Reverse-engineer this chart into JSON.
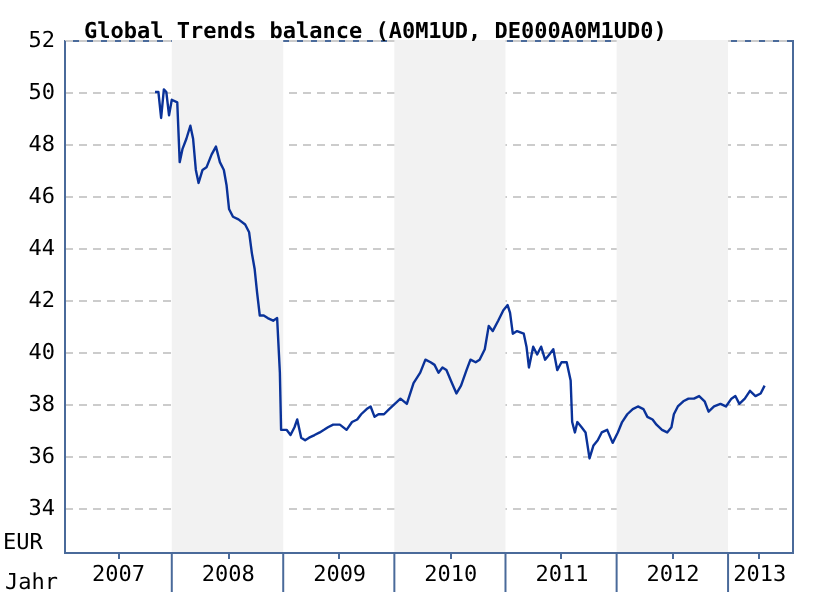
{
  "chart_data": {
    "type": "line",
    "title": "Global Trends balance (A0M1UD, DE000A0M1UD0)",
    "xlabel": "Jahr",
    "ylabel": "EUR",
    "x": [
      "2007-11-07",
      "2007-11-18",
      "2007-11-27",
      "2007-12-06",
      "2007-12-14",
      "2007-12-23",
      "2008-01-01",
      "2008-01-19",
      "2008-01-27",
      "2008-02-05",
      "2008-02-18",
      "2008-03-02",
      "2008-03-11",
      "2008-03-20",
      "2008-03-29",
      "2008-04-11",
      "2008-04-24",
      "2008-05-11",
      "2008-05-25",
      "2008-06-07",
      "2008-06-20",
      "2008-06-29",
      "2008-07-07",
      "2008-07-20",
      "2008-08-07",
      "2008-08-29",
      "2008-09-11",
      "2008-09-20",
      "2008-09-29",
      "2008-10-07",
      "2008-10-16",
      "2008-10-29",
      "2008-11-11",
      "2008-11-29",
      "2008-12-12",
      "2008-12-21",
      "2008-12-25",
      "2009-01-12",
      "2009-01-25",
      "2009-02-07",
      "2009-02-16",
      "2009-03-01",
      "2009-03-14",
      "2009-03-27",
      "2009-04-14",
      "2009-05-01",
      "2009-05-15",
      "2009-05-28",
      "2009-06-14",
      "2009-07-06",
      "2009-07-28",
      "2009-08-15",
      "2009-09-01",
      "2009-09-14",
      "2009-10-02",
      "2009-10-15",
      "2009-10-28",
      "2009-11-10",
      "2009-11-28",
      "2009-12-15",
      "2010-01-21",
      "2010-02-11",
      "2010-03-05",
      "2010-03-27",
      "2010-04-13",
      "2010-04-30",
      "2010-05-13",
      "2010-05-26",
      "2010-06-08",
      "2010-06-21",
      "2010-07-09",
      "2010-07-24",
      "2010-08-08",
      "2010-08-26",
      "2010-09-08",
      "2010-09-25",
      "2010-10-08",
      "2010-10-25",
      "2010-11-07",
      "2010-11-20",
      "2010-12-08",
      "2010-12-25",
      "2011-01-08",
      "2011-01-16",
      "2011-01-25",
      "2011-02-08",
      "2011-03-02",
      "2011-03-11",
      "2011-03-19",
      "2011-04-02",
      "2011-04-15",
      "2011-04-28",
      "2011-05-11",
      "2011-05-25",
      "2011-06-07",
      "2011-06-20",
      "2011-07-04",
      "2011-07-21",
      "2011-08-03",
      "2011-08-08",
      "2011-08-17",
      "2011-08-25",
      "2011-09-08",
      "2011-09-21",
      "2011-10-04",
      "2011-10-17",
      "2011-10-31",
      "2011-11-13",
      "2011-12-01",
      "2011-12-19",
      "2012-01-05",
      "2012-01-19",
      "2012-02-05",
      "2012-02-23",
      "2012-03-11",
      "2012-03-29",
      "2012-04-11",
      "2012-04-28",
      "2012-05-11",
      "2012-05-29",
      "2012-06-15",
      "2012-06-29",
      "2012-07-07",
      "2012-07-20",
      "2012-08-07",
      "2012-08-24",
      "2012-09-11",
      "2012-09-28",
      "2012-10-16",
      "2012-10-29",
      "2012-11-16",
      "2012-12-07",
      "2012-12-25",
      "2013-01-12",
      "2013-01-25",
      "2013-02-07",
      "2013-02-25",
      "2013-03-14",
      "2013-04-01",
      "2013-04-18",
      "2013-05-01"
    ],
    "values": [
      50.0,
      50.0,
      49.0,
      50.1,
      50.0,
      49.1,
      49.7,
      49.6,
      47.3,
      47.8,
      48.2,
      48.7,
      48.2,
      47.0,
      46.5,
      47.0,
      47.1,
      47.6,
      47.9,
      47.3,
      47.0,
      46.4,
      45.5,
      45.2,
      45.1,
      44.9,
      44.6,
      43.8,
      43.2,
      42.3,
      41.4,
      41.4,
      41.3,
      41.2,
      41.3,
      39.2,
      37.0,
      37.0,
      36.8,
      37.1,
      37.4,
      36.7,
      36.6,
      36.7,
      36.8,
      36.9,
      37.0,
      37.1,
      37.2,
      37.2,
      37.0,
      37.3,
      37.4,
      37.6,
      37.8,
      37.9,
      37.5,
      37.6,
      37.6,
      37.8,
      38.2,
      38.0,
      38.8,
      39.2,
      39.7,
      39.6,
      39.5,
      39.2,
      39.4,
      39.3,
      38.8,
      38.4,
      38.7,
      39.3,
      39.7,
      39.6,
      39.7,
      40.1,
      41.0,
      40.8,
      41.2,
      41.6,
      41.8,
      41.5,
      40.7,
      40.8,
      40.7,
      40.2,
      39.4,
      40.2,
      39.9,
      40.2,
      39.7,
      39.9,
      40.1,
      39.3,
      39.6,
      39.6,
      38.9,
      37.3,
      36.9,
      37.3,
      37.1,
      36.9,
      35.9,
      36.4,
      36.6,
      36.9,
      37.0,
      36.5,
      36.9,
      37.3,
      37.6,
      37.8,
      37.9,
      37.8,
      37.5,
      37.4,
      37.2,
      37.0,
      36.9,
      37.1,
      37.6,
      37.9,
      38.1,
      38.2,
      38.2,
      38.3,
      38.1,
      37.7,
      37.9,
      38.0,
      37.9,
      38.2,
      38.3,
      38.0,
      38.2,
      38.5,
      38.3,
      38.4,
      38.7
    ],
    "color": "#0a3299",
    "xlim": [
      "2007-01-12",
      "2013-07-30"
    ],
    "xticks": [
      {
        "value": "2007-07-07",
        "label": "2007"
      },
      {
        "value": "2008-07-01",
        "label": "2008"
      },
      {
        "value": "2009-07-02",
        "label": "2009"
      },
      {
        "value": "2010-07-02",
        "label": "2010"
      },
      {
        "value": "2011-07-02",
        "label": "2011"
      },
      {
        "value": "2012-07-01",
        "label": "2012"
      },
      {
        "value": "2013-04-12",
        "label": "2013"
      }
    ],
    "ylim": [
      32.3,
      52
    ],
    "yticks": [
      34,
      36,
      38,
      40,
      42,
      44,
      46,
      48,
      50,
      52
    ],
    "grid": "y",
    "bands": [
      {
        "axis": "x",
        "from": "2008-01-01",
        "to": "2009-01-01",
        "color": "#f2f2f2"
      },
      {
        "axis": "x",
        "from": "2010-01-01",
        "to": "2011-01-01",
        "color": "#f2f2f2"
      },
      {
        "axis": "x",
        "from": "2012-01-01",
        "to": "2013-01-01",
        "color": "#f2f2f2"
      }
    ]
  }
}
